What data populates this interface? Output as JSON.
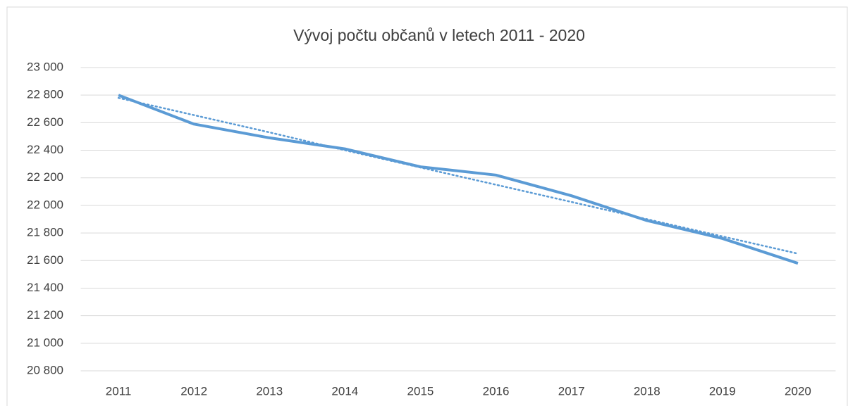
{
  "chart_data": {
    "type": "line",
    "title": "Vývoj počtu občanů v letech 2011 - 2020",
    "categories": [
      "2011",
      "2012",
      "2013",
      "2014",
      "2015",
      "2016",
      "2017",
      "2018",
      "2019",
      "2020"
    ],
    "series": [
      {
        "color": "#5b9bd5",
        "values": [
          22800,
          22590,
          22490,
          22410,
          22280,
          22220,
          22070,
          21890,
          21760,
          21580
        ]
      }
    ],
    "trendline": {
      "color": "#5b9bd5",
      "style": "dotted",
      "values": [
        22780,
        22655,
        22530,
        22400,
        22275,
        22150,
        22025,
        21900,
        21775,
        21650
      ]
    },
    "ylim": [
      20800,
      23000
    ],
    "yticks": [
      {
        "value": 20800,
        "label": "20 800"
      },
      {
        "value": 21000,
        "label": "21 000"
      },
      {
        "value": 21200,
        "label": "21 200"
      },
      {
        "value": 21400,
        "label": "21 400"
      },
      {
        "value": 21600,
        "label": "21 600"
      },
      {
        "value": 21800,
        "label": "21 800"
      },
      {
        "value": 22000,
        "label": "22 000"
      },
      {
        "value": 22200,
        "label": "22 200"
      },
      {
        "value": 22400,
        "label": "22 400"
      },
      {
        "value": 22600,
        "label": "22 600"
      },
      {
        "value": 22800,
        "label": "22 800"
      },
      {
        "value": 23000,
        "label": "23 000"
      }
    ],
    "grid": true
  }
}
